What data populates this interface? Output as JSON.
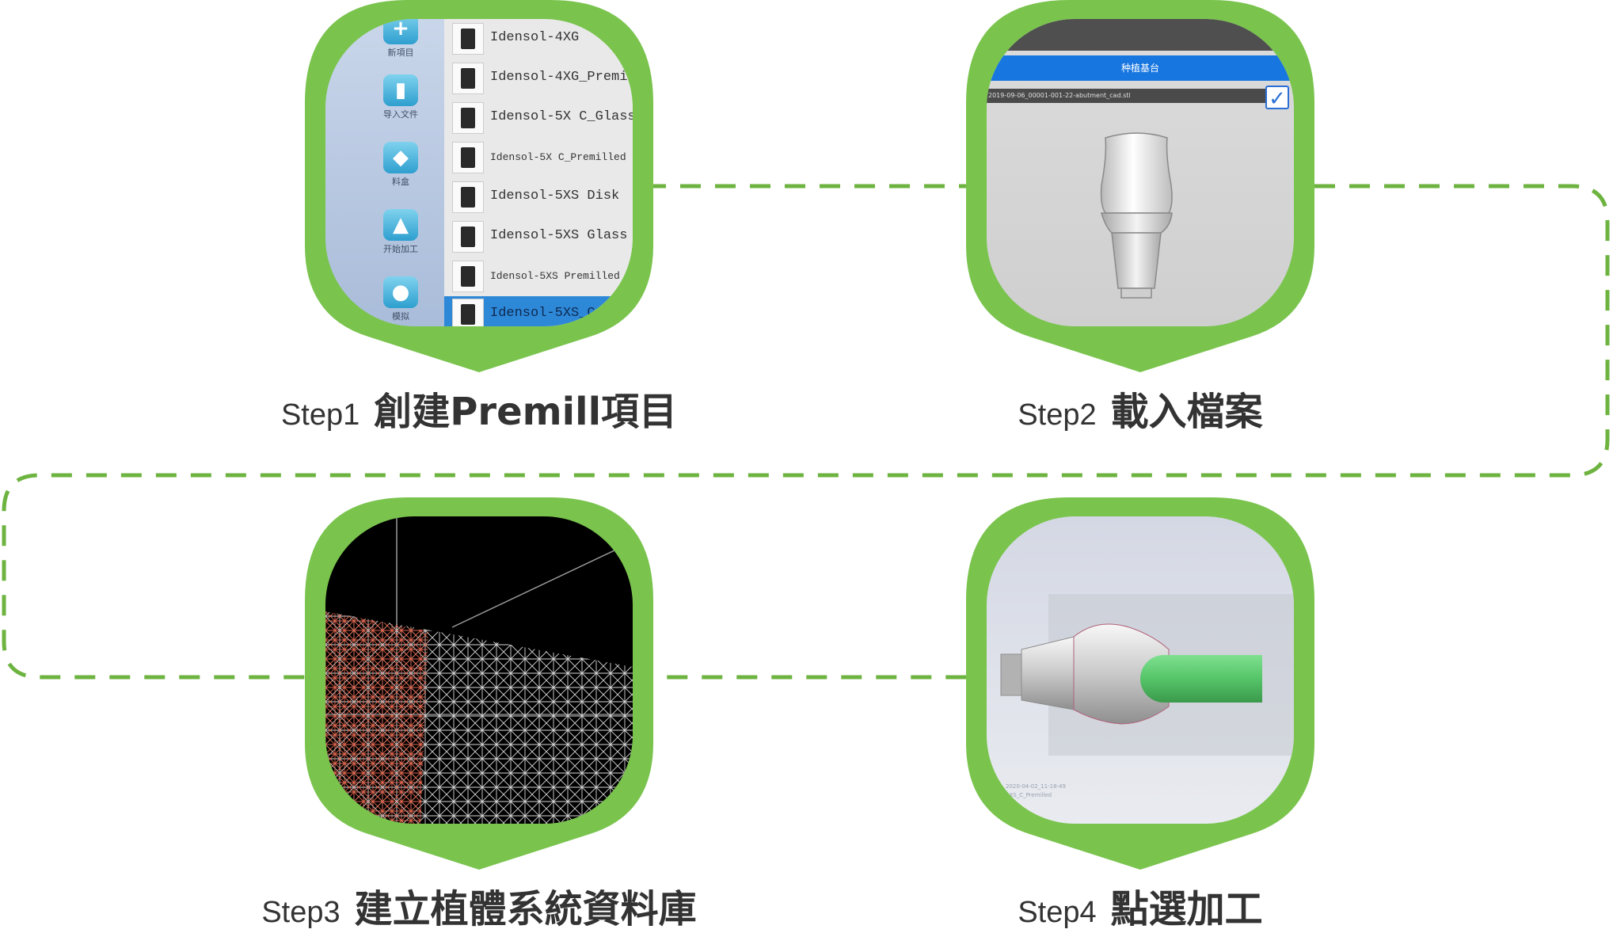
{
  "colors": {
    "badge_green": "#7ac44e",
    "connector_green": "#6db33f",
    "caption_text": "#333333",
    "selected_blue": "#2e88d8"
  },
  "steps": [
    {
      "step_label": "Step1",
      "title": "創建Premill項目",
      "screen": {
        "sidebar_tools": [
          {
            "icon": "new-project-icon",
            "label": "新項目"
          },
          {
            "icon": "import-file-icon",
            "label": "导入文件"
          },
          {
            "icon": "material-tray-icon",
            "label": "料盒"
          },
          {
            "icon": "start-machining-icon",
            "label": "开始加工"
          },
          {
            "icon": "simulation-icon",
            "label": "模拟"
          }
        ],
        "materials": [
          {
            "name": "Idensol-4XG",
            "selected": false
          },
          {
            "name": "Idensol-4XG_Premill",
            "selected": false
          },
          {
            "name": "Idensol-5X C_Glass",
            "selected": false
          },
          {
            "name": "Idensol-5X C_Premilled",
            "selected": false
          },
          {
            "name": "Idensol-5XS Disk",
            "selected": false
          },
          {
            "name": "Idensol-5XS Glass",
            "selected": false
          },
          {
            "name": "Idensol-5XS Premilled",
            "selected": false
          },
          {
            "name": "Idensol-5XS_C",
            "selected": true
          }
        ]
      }
    },
    {
      "step_label": "Step2",
      "title": "載入檔案",
      "screen": {
        "header_label": "种植基台",
        "file_path": "2019-09-06_00001-001-22-abutment_cad.stl",
        "confirm_icon": "checkmark-icon"
      }
    },
    {
      "step_label": "Step3",
      "title": "建立植體系統資料庫",
      "screen": {}
    },
    {
      "step_label": "Step4",
      "title": "點選加工",
      "screen": {
        "stamp_line1": "2020-04-02_11-18-49",
        "stamp_line2": "5XS_C_Premilled"
      }
    }
  ]
}
